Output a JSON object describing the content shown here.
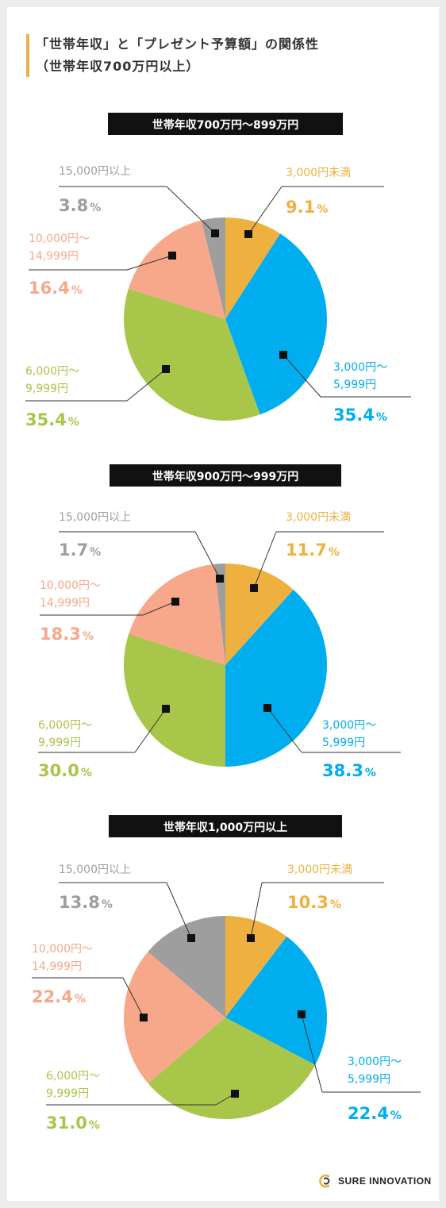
{
  "header": {
    "title_line1": "「世帯年収」と「プレゼント予算額」の関係性",
    "title_line2": "（世帯年収700万円以上）",
    "accent_color": "#e8b24a"
  },
  "logo": {
    "text": "SURE INNOVATION"
  },
  "chart_data": [
    {
      "type": "pie",
      "title": "世帯年収700万円〜899万円",
      "categories": [
        "3,000円未満",
        "3,000円〜5,999円",
        "6,000円〜9,999円",
        "10,000円〜14,999円",
        "15,000円以上"
      ],
      "values": [
        9.1,
        35.4,
        35.4,
        16.4,
        3.8
      ],
      "value_labels": [
        "9.1",
        "35.4",
        "35.4",
        "16.4",
        "3.8"
      ],
      "unit": "%",
      "colors": [
        "#eeb13f",
        "#00adef",
        "#a8c64a",
        "#f8a88a",
        "#9e9e9e"
      ]
    },
    {
      "type": "pie",
      "title": "世帯年収900万円〜999万円",
      "categories": [
        "3,000円未満",
        "3,000円〜5,999円",
        "6,000円〜9,999円",
        "10,000円〜14,999円",
        "15,000円以上"
      ],
      "values": [
        11.7,
        38.3,
        30.0,
        18.3,
        1.7
      ],
      "value_labels": [
        "11.7",
        "38.3",
        "30.0",
        "18.3",
        "1.7"
      ],
      "unit": "%",
      "colors": [
        "#eeb13f",
        "#00adef",
        "#a8c64a",
        "#f8a88a",
        "#9e9e9e"
      ]
    },
    {
      "type": "pie",
      "title": "世帯年収1,000万円以上",
      "categories": [
        "3,000円未満",
        "3,000円〜5,999円",
        "6,000円〜9,999円",
        "10,000円〜14,999円",
        "15,000円以上"
      ],
      "values": [
        10.3,
        22.4,
        31.0,
        22.4,
        13.8
      ],
      "value_labels": [
        "10.3",
        "22.4",
        "31.0",
        "22.4",
        "13.8"
      ],
      "unit": "%",
      "colors": [
        "#eeb13f",
        "#00adef",
        "#a8c64a",
        "#f8a88a",
        "#9e9e9e"
      ]
    }
  ]
}
